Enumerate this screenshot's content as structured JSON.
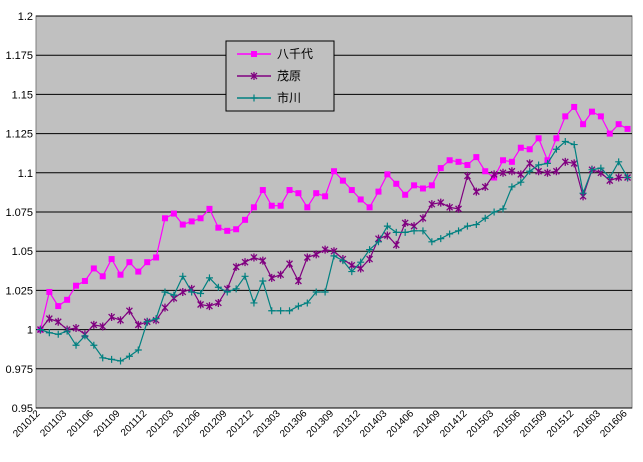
{
  "chart_data": {
    "type": "line",
    "title": "",
    "xlabel": "",
    "ylabel": "",
    "ylim": [
      0.95,
      1.2
    ],
    "yticks": [
      0.95,
      0.975,
      1,
      1.025,
      1.05,
      1.075,
      1.1,
      1.125,
      1.15,
      1.175,
      1.2
    ],
    "ytick_labels": [
      "0.95",
      "0.975",
      "1",
      "1.025",
      "1.05",
      "1.075",
      "1.1",
      "1.125",
      "1.15",
      "1.175",
      "1.2"
    ],
    "xtick_labels": [
      "201012",
      "201103",
      "201106",
      "201109",
      "201112",
      "201203",
      "201206",
      "201209",
      "201212",
      "201303",
      "201306",
      "201309",
      "201312",
      "201403",
      "201406",
      "201409",
      "201412",
      "201503",
      "201506",
      "201509",
      "201512",
      "201603",
      "201606"
    ],
    "grid": true,
    "plot_background": "#c0c0c0",
    "legend_placement": "top-center",
    "series": [
      {
        "name": "八千代",
        "color": "#ff00ff",
        "marker": "square",
        "values": [
          1.0,
          1.024,
          1.015,
          1.019,
          1.028,
          1.031,
          1.039,
          1.034,
          1.045,
          1.035,
          1.043,
          1.037,
          1.043,
          1.046,
          1.071,
          1.074,
          1.067,
          1.069,
          1.071,
          1.077,
          1.065,
          1.063,
          1.064,
          1.07,
          1.078,
          1.089,
          1.079,
          1.079,
          1.089,
          1.087,
          1.078,
          1.087,
          1.085,
          1.101,
          1.095,
          1.089,
          1.083,
          1.078,
          1.088,
          1.099,
          1.093,
          1.086,
          1.092,
          1.09,
          1.092,
          1.103,
          1.108,
          1.107,
          1.105,
          1.11,
          1.101,
          1.097,
          1.108,
          1.107,
          1.116,
          1.115,
          1.122,
          1.108,
          1.122,
          1.136,
          1.142,
          1.131,
          1.139,
          1.136,
          1.125,
          1.131,
          1.128
        ]
      },
      {
        "name": "茂原",
        "color": "#800080",
        "marker": "star",
        "values": [
          1.0,
          1.007,
          1.005,
          1.0,
          1.001,
          0.997,
          1.003,
          1.002,
          1.008,
          1.006,
          1.012,
          1.003,
          1.005,
          1.006,
          1.014,
          1.02,
          1.024,
          1.026,
          1.016,
          1.015,
          1.017,
          1.026,
          1.04,
          1.043,
          1.046,
          1.044,
          1.033,
          1.035,
          1.042,
          1.031,
          1.046,
          1.048,
          1.051,
          1.05,
          1.045,
          1.041,
          1.039,
          1.045,
          1.058,
          1.06,
          1.054,
          1.068,
          1.066,
          1.071,
          1.08,
          1.081,
          1.078,
          1.077,
          1.098,
          1.088,
          1.091,
          1.099,
          1.1,
          1.101,
          1.099,
          1.106,
          1.101,
          1.1,
          1.101,
          1.107,
          1.106,
          1.085,
          1.102,
          1.1,
          1.095,
          1.097,
          1.097
        ]
      },
      {
        "name": "市川",
        "color": "#008080",
        "marker": "plus",
        "values": [
          1.0,
          0.998,
          0.997,
          0.999,
          0.99,
          0.996,
          0.99,
          0.982,
          0.981,
          0.98,
          0.983,
          0.987,
          1.005,
          1.007,
          1.024,
          1.022,
          1.034,
          1.024,
          1.023,
          1.033,
          1.027,
          1.024,
          1.026,
          1.034,
          1.017,
          1.031,
          1.012,
          1.012,
          1.012,
          1.015,
          1.017,
          1.024,
          1.024,
          1.047,
          1.044,
          1.037,
          1.043,
          1.051,
          1.056,
          1.066,
          1.062,
          1.062,
          1.063,
          1.063,
          1.056,
          1.058,
          1.061,
          1.063,
          1.066,
          1.067,
          1.071,
          1.075,
          1.077,
          1.091,
          1.094,
          1.101,
          1.105,
          1.106,
          1.115,
          1.12,
          1.118,
          1.087,
          1.102,
          1.103,
          1.097,
          1.107,
          1.097
        ]
      }
    ]
  }
}
